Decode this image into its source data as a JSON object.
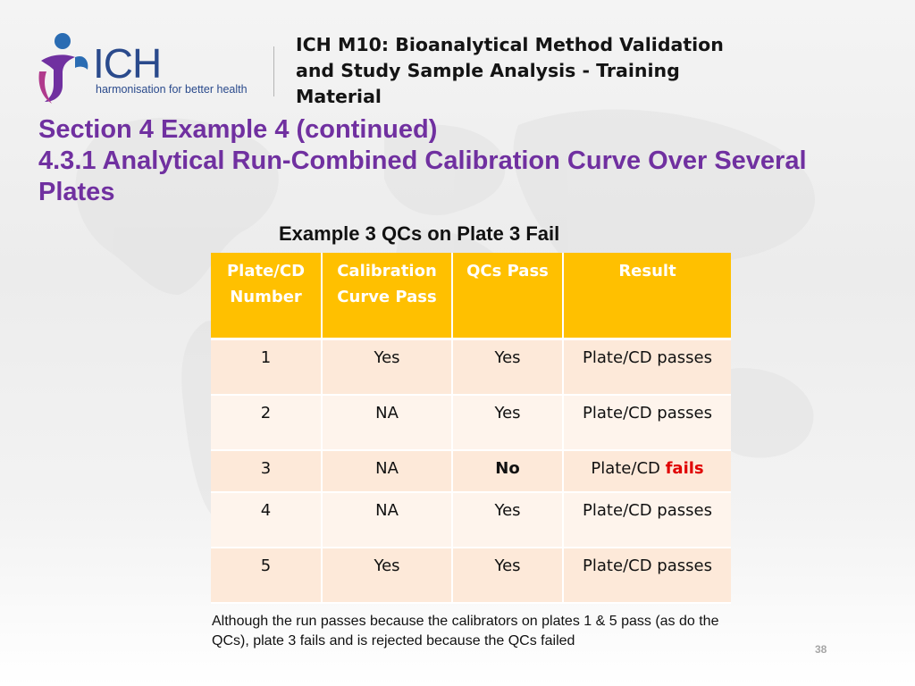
{
  "logo": {
    "wordmark": "ICH",
    "tagline": "harmonisation for better health"
  },
  "header": {
    "title": "ICH M10: Bioanalytical Method Validation and Study Sample Analysis - Training Material"
  },
  "section": {
    "line1": "Section 4 Example 4 (continued)",
    "line2": "4.3.1 Analytical Run-Combined Calibration Curve Over Several Plates"
  },
  "table": {
    "caption": "Example 3 QCs on Plate 3 Fail",
    "headers": [
      "Plate/CD Number",
      "Calibration Curve Pass",
      "QCs Pass",
      "Result"
    ],
    "rows": [
      {
        "plate": "1",
        "calibration": "Yes",
        "qcs": "Yes",
        "result_prefix": "",
        "result": "Plate/CD passes"
      },
      {
        "plate": "2",
        "calibration": "NA",
        "qcs": "Yes",
        "result_prefix": "",
        "result": "Plate/CD passes"
      },
      {
        "plate": "3",
        "calibration": "NA",
        "qcs": "No",
        "result_prefix": "Plate/CD ",
        "result": "fails"
      },
      {
        "plate": "4",
        "calibration": "NA",
        "qcs": "Yes",
        "result_prefix": "",
        "result": "Plate/CD passes"
      },
      {
        "plate": "5",
        "calibration": "Yes",
        "qcs": "Yes",
        "result_prefix": "",
        "result": "Plate/CD passes"
      }
    ]
  },
  "note": "Although the run passes because the calibrators on plates 1 & 5 pass (as do the QCs), plate 3 fails and is rejected because the QCs failed",
  "page_number": "38",
  "colors": {
    "accent_purple": "#7030a0",
    "header_orange": "#ffc000",
    "fail_red": "#e00000",
    "logo_blue": "#2a4a8c"
  }
}
